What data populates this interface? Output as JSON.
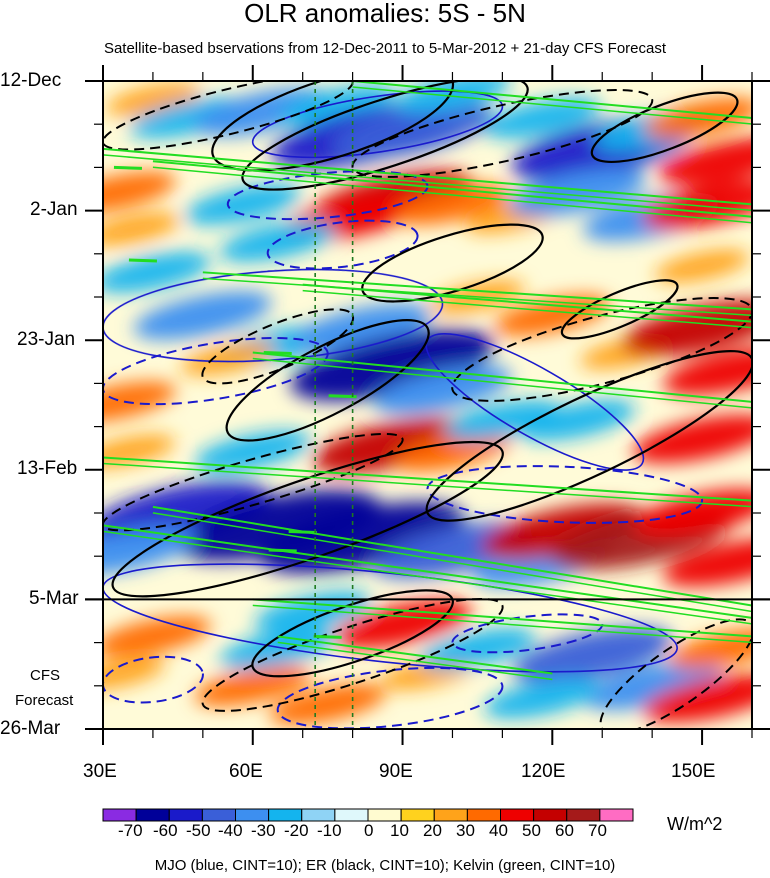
{
  "chart_data": {
    "type": "heatmap",
    "title": "OLR anomalies: 5S - 5N",
    "subtitle": "Satellite-based bservations from 12-Dec-2011 to 5-Mar-2012 + 21-day CFS Forecast",
    "xlabel": "",
    "ylabel": "",
    "x_ticks": [
      "30E",
      "60E",
      "90E",
      "120E",
      "150E"
    ],
    "x_tick_values": [
      30,
      60,
      90,
      120,
      150
    ],
    "xlim": [
      30,
      160
    ],
    "y_ticks": [
      "12-Dec",
      "2-Jan",
      "23-Jan",
      "13-Feb",
      "5-Mar",
      "26-Mar"
    ],
    "y_tick_days": [
      0,
      21,
      42,
      63,
      84,
      105
    ],
    "ylim_days": [
      0,
      105
    ],
    "forecast_start_day": 84,
    "forecast_label_line1": "CFS",
    "forecast_label_line2": "Forecast",
    "reference_longitudes": [
      72.5,
      80
    ],
    "colorbar": {
      "units": "W/m^2",
      "labels": [
        "-70",
        "-60",
        "-50",
        "-40",
        "-30",
        "-20",
        "-10",
        "0",
        "10",
        "20",
        "30",
        "40",
        "50",
        "60",
        "70"
      ],
      "levels": [
        -70,
        -60,
        -50,
        -40,
        -30,
        -20,
        -10,
        0,
        10,
        20,
        30,
        40,
        50,
        60,
        70
      ],
      "colors": [
        "#8a2be2",
        "#000099",
        "#1a1aca",
        "#3a5fd8",
        "#3d8ff0",
        "#14b4ee",
        "#8fd3f5",
        "#dff8fb",
        "#fffbd0",
        "#ffd21e",
        "#ffa31a",
        "#ff6a00",
        "#ee0000",
        "#c40000",
        "#a51a1a",
        "#ff6cc3"
      ]
    },
    "overlay_legend": "MJO (blue, CINT=10); ER (black, CINT=10); Kelvin (green, CINT=10)",
    "series": [
      {
        "name": "MJO",
        "color": "#1a1acc"
      },
      {
        "name": "ER",
        "color": "#000000"
      },
      {
        "name": "Kelvin",
        "color": "#22dd22"
      }
    ],
    "anomaly_blobs": [
      {
        "lon": 40,
        "day": 3,
        "value": 20
      },
      {
        "lon": 47,
        "day": 6,
        "value": -30
      },
      {
        "lon": 62,
        "day": 5,
        "value": -40
      },
      {
        "lon": 77,
        "day": 4,
        "value": -30
      },
      {
        "lon": 82,
        "day": 9,
        "value": -60
      },
      {
        "lon": 92,
        "day": 8,
        "value": -50
      },
      {
        "lon": 100,
        "day": 2,
        "value": -30
      },
      {
        "lon": 118,
        "day": 6,
        "value": -30
      },
      {
        "lon": 130,
        "day": 11,
        "value": -60
      },
      {
        "lon": 140,
        "day": 8,
        "value": -30
      },
      {
        "lon": 155,
        "day": 13,
        "value": 40
      },
      {
        "lon": 150,
        "day": 6,
        "value": 30
      },
      {
        "lon": 33,
        "day": 18,
        "value": 30
      },
      {
        "lon": 36,
        "day": 24,
        "value": 20
      },
      {
        "lon": 88,
        "day": 19,
        "value": 50
      },
      {
        "lon": 80,
        "day": 22,
        "value": 40
      },
      {
        "lon": 100,
        "day": 20,
        "value": 30
      },
      {
        "lon": 112,
        "day": 22,
        "value": 20
      },
      {
        "lon": 58,
        "day": 20,
        "value": -30
      },
      {
        "lon": 65,
        "day": 26,
        "value": -30
      },
      {
        "lon": 125,
        "day": 18,
        "value": -40
      },
      {
        "lon": 140,
        "day": 22,
        "value": -40
      },
      {
        "lon": 152,
        "day": 20,
        "value": 40
      },
      {
        "lon": 150,
        "day": 30,
        "value": 20
      },
      {
        "lon": 40,
        "day": 31,
        "value": -30
      },
      {
        "lon": 50,
        "day": 38,
        "value": -40
      },
      {
        "lon": 64,
        "day": 43,
        "value": -30
      },
      {
        "lon": 82,
        "day": 40,
        "value": -40
      },
      {
        "lon": 88,
        "day": 46,
        "value": -70
      },
      {
        "lon": 98,
        "day": 50,
        "value": -40
      },
      {
        "lon": 55,
        "day": 45,
        "value": 20
      },
      {
        "lon": 105,
        "day": 35,
        "value": 20
      },
      {
        "lon": 120,
        "day": 38,
        "value": 30
      },
      {
        "lon": 135,
        "day": 44,
        "value": 20
      },
      {
        "lon": 150,
        "day": 40,
        "value": 50
      },
      {
        "lon": 156,
        "day": 47,
        "value": 40
      },
      {
        "lon": 33,
        "day": 52,
        "value": 30
      },
      {
        "lon": 35,
        "day": 60,
        "value": 20
      },
      {
        "lon": 88,
        "day": 59,
        "value": 50
      },
      {
        "lon": 100,
        "day": 60,
        "value": 30
      },
      {
        "lon": 110,
        "day": 55,
        "value": -30
      },
      {
        "lon": 125,
        "day": 55,
        "value": -30
      },
      {
        "lon": 150,
        "day": 58,
        "value": 40
      },
      {
        "lon": 60,
        "day": 60,
        "value": -30
      },
      {
        "lon": 45,
        "day": 70,
        "value": -60
      },
      {
        "lon": 65,
        "day": 72,
        "value": -70
      },
      {
        "lon": 82,
        "day": 74,
        "value": -70
      },
      {
        "lon": 100,
        "day": 76,
        "value": -50
      },
      {
        "lon": 118,
        "day": 78,
        "value": -40
      },
      {
        "lon": 35,
        "day": 76,
        "value": -40
      },
      {
        "lon": 122,
        "day": 73,
        "value": 50
      },
      {
        "lon": 138,
        "day": 74,
        "value": 60
      },
      {
        "lon": 150,
        "day": 70,
        "value": 40
      },
      {
        "lon": 156,
        "day": 78,
        "value": 40
      },
      {
        "lon": 40,
        "day": 90,
        "value": 30
      },
      {
        "lon": 33,
        "day": 96,
        "value": 20
      },
      {
        "lon": 60,
        "day": 98,
        "value": 30
      },
      {
        "lon": 75,
        "day": 101,
        "value": 30
      },
      {
        "lon": 95,
        "day": 96,
        "value": 20
      },
      {
        "lon": 90,
        "day": 88,
        "value": 40
      },
      {
        "lon": 105,
        "day": 92,
        "value": -30
      },
      {
        "lon": 128,
        "day": 93,
        "value": -50
      },
      {
        "lon": 140,
        "day": 98,
        "value": -40
      },
      {
        "lon": 118,
        "day": 100,
        "value": -30
      },
      {
        "lon": 152,
        "day": 100,
        "value": 40
      },
      {
        "lon": 155,
        "day": 92,
        "value": 30
      },
      {
        "lon": 72,
        "day": 86,
        "value": -30
      },
      {
        "lon": 65,
        "day": 92,
        "value": -30
      }
    ],
    "er_contours": [
      {
        "lon0": 52,
        "day0": 12,
        "lon1": 100,
        "day1": 0,
        "w": 7
      },
      {
        "lon0": 58,
        "day0": 16,
        "lon1": 115,
        "day1": 1,
        "w": 6
      },
      {
        "lon0": 82,
        "day0": 34,
        "lon1": 118,
        "day1": 25,
        "w": 5
      },
      {
        "lon0": 55,
        "day0": 57,
        "lon1": 95,
        "day1": 40,
        "w": 6
      },
      {
        "lon0": 95,
        "day0": 70,
        "lon1": 160,
        "day1": 45,
        "w": 7
      },
      {
        "lon0": 32,
        "day0": 82,
        "lon1": 110,
        "day1": 60,
        "w": 7
      },
      {
        "lon0": 60,
        "day0": 95,
        "lon1": 100,
        "day1": 84,
        "w": 5
      },
      {
        "lon0": 128,
        "day0": 12,
        "lon1": 157,
        "day1": 3,
        "w": 4
      },
      {
        "lon0": 122,
        "day0": 41,
        "lon1": 145,
        "day1": 33,
        "w": 3
      }
    ],
    "er_dashed": [
      {
        "lon0": 30,
        "day0": 10,
        "lon1": 80,
        "day1": 0,
        "w": 4
      },
      {
        "lon0": 50,
        "day0": 48,
        "lon1": 80,
        "day1": 38,
        "w": 4
      },
      {
        "lon0": 100,
        "day0": 50,
        "lon1": 160,
        "day1": 37,
        "w": 6
      },
      {
        "lon0": 50,
        "day0": 101,
        "lon1": 110,
        "day1": 85,
        "w": 5
      },
      {
        "lon0": 130,
        "day0": 105,
        "lon1": 160,
        "day1": 88,
        "w": 5
      },
      {
        "lon0": 30,
        "day0": 72,
        "lon1": 90,
        "day1": 58,
        "w": 4
      },
      {
        "lon0": 80,
        "day0": 14,
        "lon1": 140,
        "day1": 3,
        "w": 5
      }
    ],
    "mjo_contours": [
      {
        "lon0": 30,
        "day0": 40,
        "lon1": 98,
        "day1": 36,
        "w": 8
      },
      {
        "lon0": 95,
        "day0": 42,
        "lon1": 138,
        "day1": 62,
        "w": 6
      },
      {
        "lon0": 30,
        "day0": 82,
        "lon1": 145,
        "day1": 92,
        "w": 8
      },
      {
        "lon0": 60,
        "day0": 10,
        "lon1": 110,
        "day1": 4,
        "w": 5
      }
    ],
    "mjo_dashed": [
      {
        "lon0": 55,
        "day0": 20,
        "lon1": 95,
        "day1": 17,
        "w": 4
      },
      {
        "lon0": 63,
        "day0": 28,
        "lon1": 93,
        "day1": 25,
        "w": 4
      },
      {
        "lon0": 30,
        "day0": 50,
        "lon1": 75,
        "day1": 44,
        "w": 5
      },
      {
        "lon0": 95,
        "day0": 66,
        "lon1": 150,
        "day1": 68,
        "w": 5
      },
      {
        "lon0": 30,
        "day0": 98,
        "lon1": 50,
        "day1": 96,
        "w": 4
      },
      {
        "lon0": 65,
        "day0": 102,
        "lon1": 110,
        "day1": 98,
        "w": 5
      },
      {
        "lon0": 100,
        "day0": 91,
        "lon1": 130,
        "day1": 88,
        "w": 3
      }
    ],
    "kelvin_contours": [
      {
        "lon0": 30,
        "day0": 11,
        "lon1": 160,
        "day1": 20
      },
      {
        "lon0": 40,
        "day0": 13,
        "lon1": 160,
        "day1": 22
      },
      {
        "lon0": 80,
        "day0": 0,
        "lon1": 160,
        "day1": 6
      },
      {
        "lon0": 50,
        "day0": 31,
        "lon1": 160,
        "day1": 37
      },
      {
        "lon0": 70,
        "day0": 33,
        "lon1": 160,
        "day1": 39
      },
      {
        "lon0": 60,
        "day0": 44,
        "lon1": 160,
        "day1": 52
      },
      {
        "lon0": 30,
        "day0": 61,
        "lon1": 160,
        "day1": 68
      },
      {
        "lon0": 40,
        "day0": 69,
        "lon1": 160,
        "day1": 85
      },
      {
        "lon0": 30,
        "day0": 72,
        "lon1": 160,
        "day1": 87
      },
      {
        "lon0": 60,
        "day0": 84,
        "lon1": 160,
        "day1": 90
      },
      {
        "lon0": 65,
        "day0": 90,
        "lon1": 120,
        "day1": 96
      }
    ],
    "kelvin_ticks": [
      {
        "lon": 35,
        "day": 14
      },
      {
        "lon": 38,
        "day": 29
      },
      {
        "lon": 65,
        "day": 44
      },
      {
        "lon": 78,
        "day": 51
      },
      {
        "lon": 70,
        "day": 73
      },
      {
        "lon": 66,
        "day": 76
      },
      {
        "lon": 75,
        "day": 90
      }
    ]
  }
}
